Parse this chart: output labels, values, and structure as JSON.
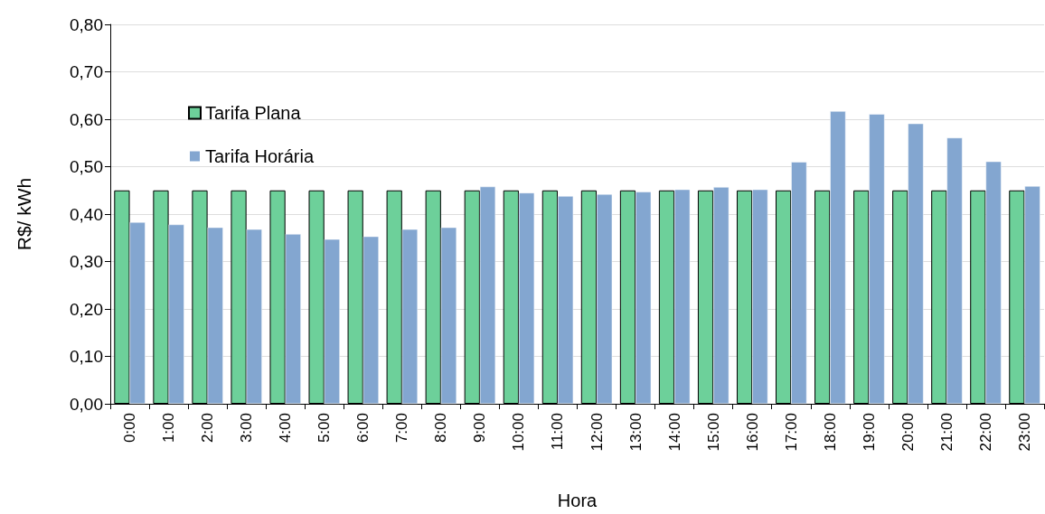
{
  "chart_data": {
    "type": "bar",
    "xlabel": "Hora",
    "ylabel": "R$/ kWh",
    "categories": [
      "0:00",
      "1:00",
      "2:00",
      "3:00",
      "4:00",
      "5:00",
      "6:00",
      "7:00",
      "8:00",
      "9:00",
      "10:00",
      "11:00",
      "12:00",
      "13:00",
      "14:00",
      "15:00",
      "16:00",
      "17:00",
      "18:00",
      "19:00",
      "20:00",
      "21:00",
      "22:00",
      "23:00"
    ],
    "series": [
      {
        "name": "Tarifa Plana",
        "color": "#6dd09a",
        "values": [
          0.45,
          0.45,
          0.45,
          0.45,
          0.45,
          0.45,
          0.45,
          0.45,
          0.45,
          0.45,
          0.45,
          0.45,
          0.45,
          0.45,
          0.45,
          0.45,
          0.45,
          0.45,
          0.45,
          0.45,
          0.45,
          0.45,
          0.45,
          0.45
        ]
      },
      {
        "name": "Tarifa Horária",
        "color": "#83a6d0",
        "values": [
          0.383,
          0.378,
          0.372,
          0.368,
          0.358,
          0.347,
          0.353,
          0.368,
          0.372,
          0.458,
          0.445,
          0.438,
          0.442,
          0.447,
          0.452,
          0.457,
          0.452,
          0.51,
          0.617,
          0.611,
          0.591,
          0.561,
          0.511,
          0.459
        ]
      }
    ],
    "ylim": [
      0,
      0.8
    ],
    "yticks": [
      {
        "value": 0,
        "label": "0,00"
      },
      {
        "value": 0.1,
        "label": "0,10"
      },
      {
        "value": 0.2,
        "label": "0,20"
      },
      {
        "value": 0.3,
        "label": "0,30"
      },
      {
        "value": 0.4,
        "label": "0,40"
      },
      {
        "value": 0.5,
        "label": "0,50"
      },
      {
        "value": 0.6,
        "label": "0,60"
      },
      {
        "value": 0.7,
        "label": "0,70"
      },
      {
        "value": 0.8,
        "label": "0,80"
      }
    ],
    "grid": "y",
    "legend": "top left"
  }
}
